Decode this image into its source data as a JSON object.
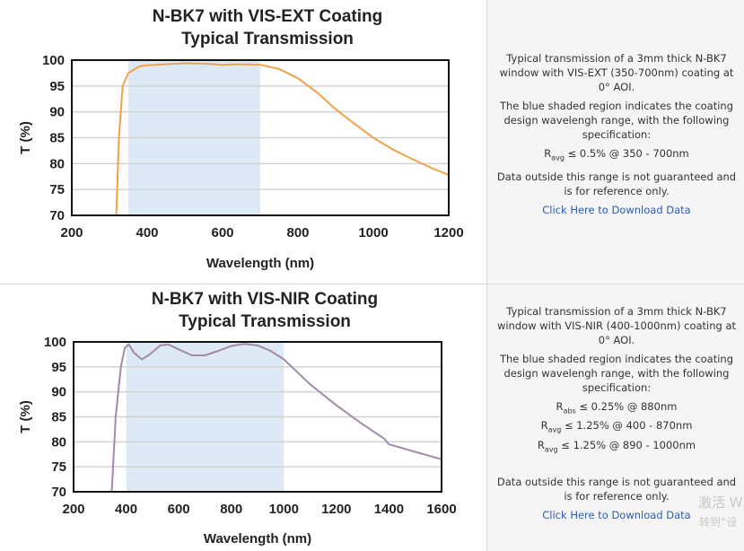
{
  "chart_data": [
    {
      "type": "line",
      "title": "N-BK7 with VIS-EXT Coating",
      "subtitle": "Typical Transmission",
      "xlabel": "Wavelength (nm)",
      "ylabel": "T (%)",
      "xlim": [
        200,
        1200
      ],
      "ylim": [
        70,
        100
      ],
      "xticks": [
        "200",
        "400",
        "600",
        "800",
        "1000",
        "1200"
      ],
      "yticks": [
        "70",
        "75",
        "80",
        "85",
        "90",
        "95",
        "100"
      ],
      "grid": true,
      "shaded_range": [
        350,
        700
      ],
      "shade_color": "#dde9f5",
      "line_color": "#f0a24a",
      "x": [
        318,
        325,
        335,
        350,
        380,
        400,
        450,
        500,
        550,
        600,
        650,
        700,
        750,
        800,
        850,
        900,
        950,
        1000,
        1050,
        1100,
        1150,
        1200
      ],
      "y": [
        70,
        85,
        95,
        97.5,
        98.8,
        99,
        99.2,
        99.4,
        99.3,
        99.1,
        99.2,
        99.1,
        98.3,
        96.5,
        93.8,
        90.5,
        87.7,
        85,
        82.8,
        81,
        79.3,
        77.8
      ]
    },
    {
      "type": "line",
      "title": "N-BK7 with VIS-NIR Coating",
      "subtitle": "Typical Transmission",
      "xlabel": "Wavelength (nm)",
      "ylabel": "T (%)",
      "xlim": [
        200,
        1600
      ],
      "ylim": [
        70,
        100
      ],
      "xticks": [
        "200",
        "400",
        "600",
        "800",
        "1000",
        "1200",
        "1400",
        "1600"
      ],
      "yticks": [
        "70",
        "75",
        "80",
        "85",
        "90",
        "95",
        "100"
      ],
      "grid": true,
      "shaded_range": [
        400,
        1000
      ],
      "shade_color": "#dde9f5",
      "line_color": "#a28aab",
      "x": [
        345,
        360,
        380,
        395,
        410,
        430,
        460,
        490,
        530,
        560,
        600,
        650,
        700,
        750,
        800,
        850,
        900,
        950,
        1000,
        1100,
        1200,
        1300,
        1380,
        1400,
        1500,
        1600
      ],
      "y": [
        70,
        85,
        95,
        98.8,
        99.5,
        97.8,
        96.5,
        97.5,
        99.3,
        99.5,
        98.5,
        97.3,
        97.3,
        98.2,
        99.2,
        99.6,
        99.3,
        98.2,
        96.5,
        91.5,
        87.3,
        83.5,
        80.7,
        79.5,
        78,
        76.5
      ]
    }
  ],
  "panels": [
    {
      "desc1": "Typical transmission of a 3mm thick N-BK7 window with VIS-EXT (350-700nm) coating at 0° AOI.",
      "desc2": "The blue shaded region indicates the coating design wavelengh range, with the following specification:",
      "specs": [
        {
          "sym": "R",
          "sub": "avg",
          "text": "≤ 0.5% @ 350 - 700nm"
        }
      ],
      "note": "Data outside this range is not guaranteed and is for reference only.",
      "link": "Click Here to Download Data"
    },
    {
      "desc1": "Typical transmission of a 3mm thick N-BK7 window with VIS-NIR (400-1000nm) coating at 0° AOI.",
      "desc2": "The blue shaded region indicates the coating design wavelengh range, with the following specification:",
      "specs": [
        {
          "sym": "R",
          "sub": "abs",
          "text": "≤ 0.25% @ 880nm"
        },
        {
          "sym": "R",
          "sub": "avg",
          "text": "≤ 1.25% @ 400 - 870nm"
        },
        {
          "sym": "R",
          "sub": "avg",
          "text": "≤ 1.25% @ 890 - 1000nm"
        }
      ],
      "note": "Data outside this range is not guaranteed and is for reference only.",
      "link": "Click Here to Download Data"
    }
  ],
  "watermark": {
    "line1": "激活 W",
    "line2": "转到“设"
  }
}
